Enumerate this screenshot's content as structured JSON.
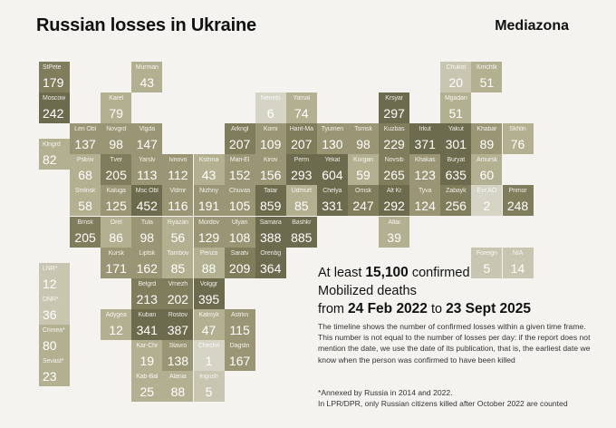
{
  "title": "Russian losses in Ukraine",
  "brand": "Mediazona",
  "colors": {
    "darkest": "#6d6b4e",
    "dark": "#807d5d",
    "mid": "#9a9675",
    "light": "#b3b092",
    "lightest": "#c8c6b1",
    "palest": "#d6d4c5"
  },
  "headline": {
    "prefix": "At least",
    "number": "15,100",
    "suffix": "confirmed",
    "line2": "Mobilized deaths",
    "from_word": "from",
    "start_date": "24 Feb 2022",
    "to_word": "to",
    "end_date": "23 Sept 2025"
  },
  "description": "The timeline shows the number of confirmed losses within a given time frame. This number is not equal to the number of losses per day: if the report does not mention the date, we use the date of its publication, that is, the earliest date we know when the person was confirmed to have been killed",
  "footnote_annexed": "*Annexed by Russia in 2014 and 2022.",
  "footnote_lpr": "In LPR/DPR, only Russian citizens killed after October 2022 are counted",
  "regions": [
    {
      "label": "StPete",
      "value": "179",
      "col": 0,
      "row": 0,
      "shade": "dark",
      "key": "stpete"
    },
    {
      "label": "Murman",
      "value": "43",
      "col": 3,
      "row": 0,
      "shade": "light",
      "key": "murman"
    },
    {
      "label": "Chukot",
      "value": "20",
      "col": 13,
      "row": 0,
      "shade": "lightest",
      "key": "chukot"
    },
    {
      "label": "Kmchtk",
      "value": "51",
      "col": 14,
      "row": 0,
      "shade": "light",
      "key": "kmchtk"
    },
    {
      "label": "Moscow",
      "value": "242",
      "col": 0,
      "row": 1,
      "shade": "darkest",
      "key": "moscow"
    },
    {
      "label": "Karel",
      "value": "79",
      "col": 2,
      "row": 1,
      "shade": "light",
      "key": "karel"
    },
    {
      "label": "Nenets",
      "value": "6",
      "col": 7,
      "row": 1,
      "shade": "palest",
      "key": "nenets"
    },
    {
      "label": "Yamal",
      "value": "74",
      "col": 8,
      "row": 1,
      "shade": "light",
      "key": "yamal"
    },
    {
      "label": "Krsyar",
      "value": "297",
      "col": 11,
      "row": 1,
      "shade": "darkest",
      "key": "krsyar"
    },
    {
      "label": "Mgadan",
      "value": "51",
      "col": 13,
      "row": 1,
      "shade": "light",
      "key": "mgadan"
    },
    {
      "label": "Len Obl",
      "value": "137",
      "col": 1,
      "row": 2,
      "shade": "mid",
      "key": "lenobl"
    },
    {
      "label": "Novgrd",
      "value": "98",
      "col": 2,
      "row": 2,
      "shade": "mid",
      "key": "novgrd"
    },
    {
      "label": "Vlgda",
      "value": "147",
      "col": 3,
      "row": 2,
      "shade": "mid",
      "key": "vlgda"
    },
    {
      "label": "Arkngl",
      "value": "207",
      "col": 6,
      "row": 2,
      "shade": "dark",
      "key": "arkngl"
    },
    {
      "label": "Komi",
      "value": "109",
      "col": 7,
      "row": 2,
      "shade": "mid",
      "key": "komi"
    },
    {
      "label": "Hant-Ma",
      "value": "207",
      "col": 8,
      "row": 2,
      "shade": "dark",
      "key": "hantma"
    },
    {
      "label": "Tyumen",
      "value": "130",
      "col": 9,
      "row": 2,
      "shade": "mid",
      "key": "tyumen"
    },
    {
      "label": "Tomsk",
      "value": "98",
      "col": 10,
      "row": 2,
      "shade": "mid",
      "key": "tomsk"
    },
    {
      "label": "Kuzbas",
      "value": "229",
      "col": 11,
      "row": 2,
      "shade": "dark",
      "key": "kuzbas"
    },
    {
      "label": "Irkut",
      "value": "371",
      "col": 12,
      "row": 2,
      "shade": "darkest",
      "key": "irkut"
    },
    {
      "label": "Yakut",
      "value": "301",
      "col": 13,
      "row": 2,
      "shade": "darkest",
      "key": "yakut"
    },
    {
      "label": "Khabar",
      "value": "89",
      "col": 14,
      "row": 2,
      "shade": "mid",
      "key": "khabar"
    },
    {
      "label": "Skhlin",
      "value": "76",
      "col": 15,
      "row": 2,
      "shade": "light",
      "key": "skhlin"
    },
    {
      "label": "Klngrd",
      "value": "82",
      "col": 0,
      "row": 2.5,
      "shade": "light",
      "key": "klngrd"
    },
    {
      "label": "Pskov",
      "value": "68",
      "col": 1,
      "row": 3,
      "shade": "light",
      "key": "pskov"
    },
    {
      "label": "Tver",
      "value": "205",
      "col": 2,
      "row": 3,
      "shade": "dark",
      "key": "tver"
    },
    {
      "label": "Yarslv",
      "value": "113",
      "col": 3,
      "row": 3,
      "shade": "mid",
      "key": "yarslv"
    },
    {
      "label": "Ivnovo",
      "value": "112",
      "col": 4,
      "row": 3,
      "shade": "mid",
      "key": "ivnovo"
    },
    {
      "label": "Kstrma",
      "value": "43",
      "col": 5,
      "row": 3,
      "shade": "light",
      "key": "kstrma"
    },
    {
      "label": "Mari-El",
      "value": "152",
      "col": 6,
      "row": 3,
      "shade": "mid",
      "key": "mariel"
    },
    {
      "label": "Kirov",
      "value": "156",
      "col": 7,
      "row": 3,
      "shade": "mid",
      "key": "kirov"
    },
    {
      "label": "Perm",
      "value": "293",
      "col": 8,
      "row": 3,
      "shade": "darkest",
      "key": "perm"
    },
    {
      "label": "Yekat",
      "value": "604",
      "col": 9,
      "row": 3,
      "shade": "darkest",
      "key": "yekat"
    },
    {
      "label": "Kurgan",
      "value": "59",
      "col": 10,
      "row": 3,
      "shade": "light",
      "key": "kurgan"
    },
    {
      "label": "Novsib",
      "value": "265",
      "col": 11,
      "row": 3,
      "shade": "dark",
      "key": "novsib"
    },
    {
      "label": "Khakas",
      "value": "123",
      "col": 12,
      "row": 3,
      "shade": "mid",
      "key": "khakas"
    },
    {
      "label": "Buryat",
      "value": "635",
      "col": 13,
      "row": 3,
      "shade": "darkest",
      "key": "buryat"
    },
    {
      "label": "Amursk",
      "value": "60",
      "col": 14,
      "row": 3,
      "shade": "light",
      "key": "amursk"
    },
    {
      "label": "Smlnsk",
      "value": "58",
      "col": 1,
      "row": 4,
      "shade": "light",
      "key": "smlnsk"
    },
    {
      "label": "Kaluga",
      "value": "125",
      "col": 2,
      "row": 4,
      "shade": "mid",
      "key": "kaluga"
    },
    {
      "label": "Msc Obl",
      "value": "452",
      "col": 3,
      "row": 4,
      "shade": "darkest",
      "key": "mscobl"
    },
    {
      "label": "Vldmr",
      "value": "116",
      "col": 4,
      "row": 4,
      "shade": "mid",
      "key": "vldmr"
    },
    {
      "label": "Nizhny",
      "value": "191",
      "col": 5,
      "row": 4,
      "shade": "mid",
      "key": "nizhny"
    },
    {
      "label": "Chuvas",
      "value": "105",
      "col": 6,
      "row": 4,
      "shade": "mid",
      "key": "chuvas"
    },
    {
      "label": "Tatar",
      "value": "859",
      "col": 7,
      "row": 4,
      "shade": "darkest",
      "key": "tatar"
    },
    {
      "label": "Udmurt",
      "value": "85",
      "col": 8,
      "row": 4,
      "shade": "light",
      "key": "udmurt"
    },
    {
      "label": "Chelya",
      "value": "331",
      "col": 9,
      "row": 4,
      "shade": "darkest",
      "key": "chelya"
    },
    {
      "label": "Omsk",
      "value": "247",
      "col": 10,
      "row": 4,
      "shade": "dark",
      "key": "omsk"
    },
    {
      "label": "Alt Kr",
      "value": "292",
      "col": 11,
      "row": 4,
      "shade": "darkest",
      "key": "altkr"
    },
    {
      "label": "Tyva",
      "value": "124",
      "col": 12,
      "row": 4,
      "shade": "mid",
      "key": "tyva"
    },
    {
      "label": "Zabayk",
      "value": "256",
      "col": 13,
      "row": 4,
      "shade": "dark",
      "key": "zabayk"
    },
    {
      "label": "Evr AO",
      "value": "2",
      "col": 14,
      "row": 4,
      "shade": "palest",
      "key": "evrao"
    },
    {
      "label": "Primor",
      "value": "248",
      "col": 15,
      "row": 4,
      "shade": "dark",
      "key": "primor"
    },
    {
      "label": "Brnsk",
      "value": "205",
      "col": 1,
      "row": 5,
      "shade": "dark",
      "key": "brnsk"
    },
    {
      "label": "Orel",
      "value": "86",
      "col": 2,
      "row": 5,
      "shade": "light",
      "key": "orel"
    },
    {
      "label": "Tula",
      "value": "98",
      "col": 3,
      "row": 5,
      "shade": "mid",
      "key": "tula"
    },
    {
      "label": "Ryazan",
      "value": "56",
      "col": 4,
      "row": 5,
      "shade": "light",
      "key": "ryazan"
    },
    {
      "label": "Mordov",
      "value": "129",
      "col": 5,
      "row": 5,
      "shade": "mid",
      "key": "mordov"
    },
    {
      "label": "Ulyan",
      "value": "108",
      "col": 6,
      "row": 5,
      "shade": "mid",
      "key": "ulyan"
    },
    {
      "label": "Samara",
      "value": "388",
      "col": 7,
      "row": 5,
      "shade": "darkest",
      "key": "samara"
    },
    {
      "label": "Bashkr",
      "value": "885",
      "col": 8,
      "row": 5,
      "shade": "darkest",
      "key": "bashkr"
    },
    {
      "label": "Altai",
      "value": "39",
      "col": 11,
      "row": 5,
      "shade": "light",
      "key": "altai"
    },
    {
      "label": "Foreign",
      "value": "5",
      "col": 14,
      "row": 6,
      "shade": "lightest",
      "key": "foreign"
    },
    {
      "label": "N/A",
      "value": "14",
      "col": 15,
      "row": 6,
      "shade": "lightest",
      "key": "na"
    },
    {
      "label": "Kursk",
      "value": "171",
      "col": 2,
      "row": 6,
      "shade": "mid",
      "key": "kursk"
    },
    {
      "label": "Liptsk",
      "value": "162",
      "col": 3,
      "row": 6,
      "shade": "mid",
      "key": "liptsk"
    },
    {
      "label": "Tambov",
      "value": "85",
      "col": 4,
      "row": 6,
      "shade": "light",
      "key": "tambov"
    },
    {
      "label": "Penza",
      "value": "88",
      "col": 5,
      "row": 6,
      "shade": "light",
      "key": "penza"
    },
    {
      "label": "Saratv",
      "value": "209",
      "col": 6,
      "row": 6,
      "shade": "dark",
      "key": "saratv"
    },
    {
      "label": "Orenbg",
      "value": "364",
      "col": 7,
      "row": 6,
      "shade": "darkest",
      "key": "orenbg"
    },
    {
      "label": "LNR*",
      "value": "12",
      "col": 0,
      "row": 6.5,
      "shade": "lightest",
      "key": "lnr"
    },
    {
      "label": "Belgrd",
      "value": "213",
      "col": 3,
      "row": 7,
      "shade": "dark",
      "key": "belgrd"
    },
    {
      "label": "Vrnezh",
      "value": "202",
      "col": 4,
      "row": 7,
      "shade": "dark",
      "key": "vrnezh"
    },
    {
      "label": "Volggr",
      "value": "395",
      "col": 5,
      "row": 7,
      "shade": "darkest",
      "key": "volggr"
    },
    {
      "label": "DNR*",
      "value": "36",
      "col": 0,
      "row": 7.5,
      "shade": "lightest",
      "key": "dnr"
    },
    {
      "label": "Adygea",
      "value": "12",
      "col": 2,
      "row": 8,
      "shade": "light",
      "key": "adygea"
    },
    {
      "label": "Kuban",
      "value": "341",
      "col": 3,
      "row": 8,
      "shade": "darkest",
      "key": "kuban"
    },
    {
      "label": "Rostov",
      "value": "387",
      "col": 4,
      "row": 8,
      "shade": "darkest",
      "key": "rostov"
    },
    {
      "label": "Kalmyk",
      "value": "47",
      "col": 5,
      "row": 8,
      "shade": "light",
      "key": "kalmyk"
    },
    {
      "label": "Astrkn",
      "value": "115",
      "col": 6,
      "row": 8,
      "shade": "mid",
      "key": "astrkn"
    },
    {
      "label": "Crimea*",
      "value": "80",
      "col": 0,
      "row": 8.5,
      "shade": "light",
      "key": "crimea"
    },
    {
      "label": "Kar-Chr",
      "value": "19",
      "col": 3,
      "row": 9,
      "shade": "light",
      "key": "karchr"
    },
    {
      "label": "Stavro",
      "value": "138",
      "col": 4,
      "row": 9,
      "shade": "mid",
      "key": "stavro"
    },
    {
      "label": "Chechn",
      "value": "1",
      "col": 5,
      "row": 9,
      "shade": "palest",
      "key": "chechn"
    },
    {
      "label": "Dagstn",
      "value": "167",
      "col": 6,
      "row": 9,
      "shade": "mid",
      "key": "dagstn"
    },
    {
      "label": "Sevast*",
      "value": "23",
      "col": 0,
      "row": 9.5,
      "shade": "light",
      "key": "sevast"
    },
    {
      "label": "Kab-Bal",
      "value": "25",
      "col": 3,
      "row": 10,
      "shade": "light",
      "key": "kabbal"
    },
    {
      "label": "Alania",
      "value": "88",
      "col": 4,
      "row": 10,
      "shade": "light",
      "key": "alania"
    },
    {
      "label": "Ingush",
      "value": "5",
      "col": 5,
      "row": 10,
      "shade": "lightest",
      "key": "ingush"
    }
  ]
}
